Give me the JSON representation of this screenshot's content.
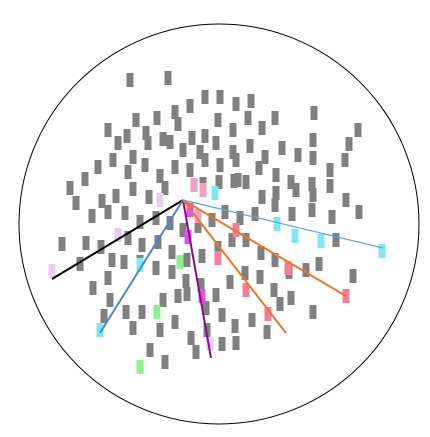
{
  "colors": {
    "background": "#ffffff",
    "outline": "#000000",
    "marker_gray": "#808080",
    "marker_pink": "#f2a0c8",
    "marker_cyan": "#7fe8f2",
    "marker_green": "#8cf28c",
    "marker_magenta": "#e84de8",
    "marker_salmon": "#f07f9a",
    "marker_lavender": "#e6cdf2",
    "line_black": "#000000",
    "line_steelblue": "#4a86c8",
    "line_lightblue": "#5aa8e0",
    "line_purple": "#8b0a8b",
    "line_orange": "#e8782a"
  }
}
